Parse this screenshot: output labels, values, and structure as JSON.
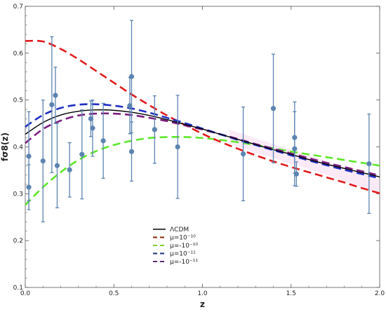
{
  "chart_data": {
    "type": "line",
    "title": "",
    "xlabel": "z",
    "ylabel": "fσ8(z)",
    "xlim": [
      0,
      2.0
    ],
    "ylim": [
      0.1,
      0.7
    ],
    "xticks": [
      "0.0",
      "0.5",
      "1.0",
      "1.5",
      "2.0"
    ],
    "yticks": [
      "0.1",
      "0.2",
      "0.3",
      "0.4",
      "0.5",
      "0.6",
      "0.7"
    ],
    "grid": false,
    "legend_position": "bottom-center",
    "legend": [
      {
        "label": "ΛCDM",
        "color": "#000000",
        "dash": "solid"
      },
      {
        "label": "μ=10⁻¹⁰",
        "color": "#8B2500",
        "dash": "dashed"
      },
      {
        "label": "μ=-10⁻¹⁰",
        "color": "#7FCD28",
        "dash": "dashed"
      },
      {
        "label": "μ=10⁻¹¹",
        "color": "#1E2D78",
        "dash": "dashed"
      },
      {
        "label": "μ=-10⁻¹¹",
        "color": "#5A2A6E",
        "dash": "dashed"
      }
    ],
    "series": [
      {
        "name": "ΛCDM",
        "color": "#000000",
        "dash": "solid",
        "x": [
          0,
          0.1,
          0.2,
          0.3,
          0.4,
          0.5,
          0.6,
          0.7,
          0.8,
          0.9,
          1.0,
          1.1,
          1.2,
          1.3,
          1.4,
          1.5,
          1.6,
          1.7,
          1.8,
          1.9,
          2.0
        ],
        "y": [
          0.427,
          0.452,
          0.468,
          0.476,
          0.479,
          0.478,
          0.474,
          0.467,
          0.458,
          0.448,
          0.438,
          0.427,
          0.416,
          0.405,
          0.394,
          0.384,
          0.373,
          0.363,
          0.354,
          0.345,
          0.336
        ]
      },
      {
        "name": "μ=10⁻¹⁰",
        "color": "#E31A1C",
        "dash": "dashed",
        "x": [
          0,
          0.1,
          0.2,
          0.3,
          0.4,
          0.5,
          0.6,
          0.7,
          0.8,
          0.9,
          1.0,
          1.1,
          1.2,
          1.3,
          1.4,
          1.5,
          1.6,
          1.7,
          1.8,
          1.9,
          2.0
        ],
        "y": [
          0.626,
          0.625,
          0.609,
          0.587,
          0.562,
          0.537,
          0.512,
          0.489,
          0.467,
          0.447,
          0.428,
          0.411,
          0.396,
          0.382,
          0.369,
          0.357,
          0.346,
          0.335,
          0.324,
          0.312,
          0.301
        ]
      },
      {
        "name": "μ=-10⁻¹⁰",
        "color": "#5EE82B",
        "dash": "dashed",
        "x": [
          0,
          0.1,
          0.2,
          0.3,
          0.4,
          0.5,
          0.6,
          0.7,
          0.8,
          0.9,
          1.0,
          1.1,
          1.2,
          1.3,
          1.4,
          1.5,
          1.6,
          1.7,
          1.8,
          1.9,
          2.0
        ],
        "y": [
          0.276,
          0.314,
          0.346,
          0.372,
          0.391,
          0.404,
          0.413,
          0.419,
          0.421,
          0.421,
          0.419,
          0.415,
          0.41,
          0.404,
          0.397,
          0.39,
          0.384,
          0.378,
          0.372,
          0.366,
          0.36
        ]
      },
      {
        "name": "μ=10⁻¹¹",
        "color": "#1F2FC4",
        "dash": "dashed",
        "x": [
          0,
          0.1,
          0.2,
          0.3,
          0.4,
          0.5,
          0.6,
          0.7,
          0.8,
          0.9,
          1.0,
          1.1,
          1.2,
          1.3,
          1.4,
          1.5,
          1.6,
          1.7,
          1.8,
          1.9,
          2.0
        ],
        "y": [
          0.443,
          0.468,
          0.483,
          0.49,
          0.491,
          0.488,
          0.482,
          0.473,
          0.462,
          0.451,
          0.439,
          0.427,
          0.415,
          0.404,
          0.393,
          0.382,
          0.371,
          0.361,
          0.351,
          0.342,
          0.333
        ]
      },
      {
        "name": "μ=-10⁻¹¹",
        "color": "#7B1C7F",
        "dash": "dashed",
        "x": [
          0,
          0.1,
          0.2,
          0.3,
          0.4,
          0.5,
          0.6,
          0.7,
          0.8,
          0.9,
          1.0,
          1.1,
          1.2,
          1.3,
          1.4,
          1.5,
          1.6,
          1.7,
          1.8,
          1.9,
          2.0
        ],
        "y": [
          0.408,
          0.438,
          0.456,
          0.467,
          0.471,
          0.471,
          0.468,
          0.462,
          0.455,
          0.446,
          0.437,
          0.427,
          0.417,
          0.406,
          0.396,
          0.386,
          0.376,
          0.366,
          0.357,
          0.348,
          0.339
        ]
      }
    ],
    "data_points": {
      "color": "#5B84B1",
      "points": [
        {
          "x": 0.02,
          "y": 0.314,
          "err": 0.048
        },
        {
          "x": 0.02,
          "y": 0.38,
          "err": 0.095
        },
        {
          "x": 0.1,
          "y": 0.37,
          "err": 0.13
        },
        {
          "x": 0.15,
          "y": 0.49,
          "err": 0.145
        },
        {
          "x": 0.17,
          "y": 0.51,
          "err": 0.06
        },
        {
          "x": 0.18,
          "y": 0.36,
          "err": 0.09
        },
        {
          "x": 0.25,
          "y": 0.351,
          "err": 0.058
        },
        {
          "x": 0.32,
          "y": 0.384,
          "err": 0.095
        },
        {
          "x": 0.37,
          "y": 0.46,
          "err": 0.038
        },
        {
          "x": 0.38,
          "y": 0.44,
          "err": 0.06
        },
        {
          "x": 0.44,
          "y": 0.413,
          "err": 0.08
        },
        {
          "x": 0.59,
          "y": 0.488,
          "err": 0.06
        },
        {
          "x": 0.6,
          "y": 0.39,
          "err": 0.063
        },
        {
          "x": 0.6,
          "y": 0.55,
          "err": 0.12
        },
        {
          "x": 0.73,
          "y": 0.437,
          "err": 0.072
        },
        {
          "x": 0.86,
          "y": 0.4,
          "err": 0.11
        },
        {
          "x": 1.23,
          "y": 0.385,
          "err": 0.1
        },
        {
          "x": 1.4,
          "y": 0.482,
          "err": 0.116
        },
        {
          "x": 1.52,
          "y": 0.42,
          "err": 0.076
        },
        {
          "x": 1.52,
          "y": 0.396,
          "err": 0.079
        },
        {
          "x": 1.53,
          "y": 0.342,
          "err": 0.026
        },
        {
          "x": 1.94,
          "y": 0.364,
          "err": 0.106
        }
      ]
    }
  }
}
